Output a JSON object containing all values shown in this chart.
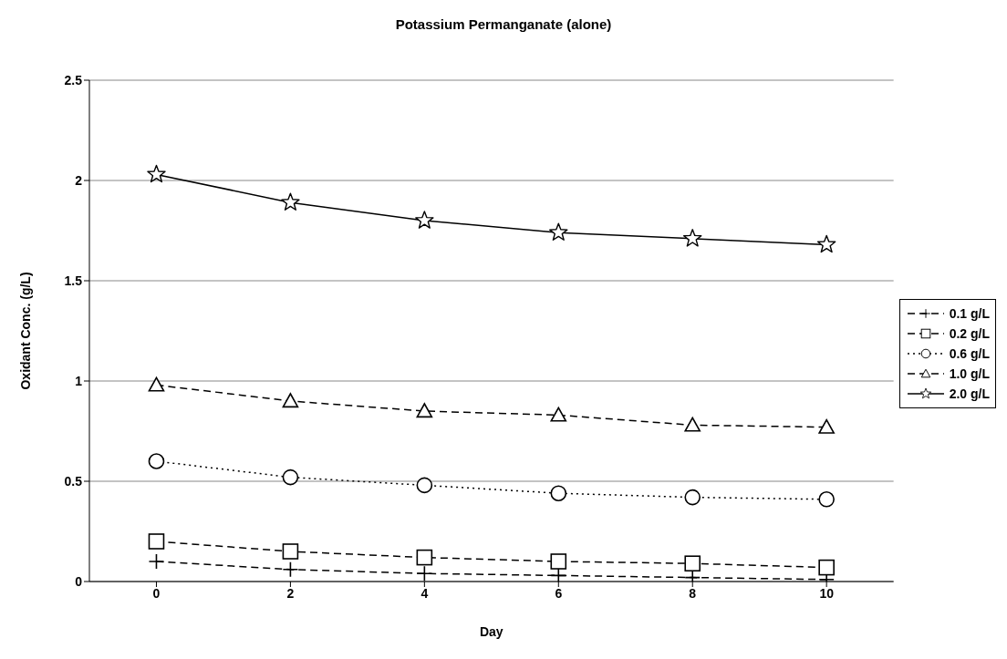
{
  "chart_data": {
    "type": "line",
    "title": "Potassium Permanganate (alone)",
    "xlabel": "Day",
    "ylabel": "Oxidant Conc. (g/L)",
    "x": [
      0,
      2,
      4,
      6,
      8,
      10
    ],
    "xlim": [
      -1,
      11
    ],
    "xticks": [
      0,
      2,
      4,
      6,
      8,
      10
    ],
    "ylim": [
      0,
      2.5
    ],
    "yticks": [
      0,
      0.5,
      1,
      1.5,
      2,
      2.5
    ],
    "grid": "y",
    "legend": "right",
    "series": [
      {
        "name": "0.1 g/L",
        "color": "#000000",
        "marker": "cross",
        "line_style": "dashed",
        "values": [
          0.1,
          0.06,
          0.04,
          0.03,
          0.02,
          0.01
        ]
      },
      {
        "name": "0.2 g/L",
        "color": "#000000",
        "marker": "square",
        "line_style": "dashed",
        "values": [
          0.2,
          0.15,
          0.12,
          0.1,
          0.09,
          0.07
        ]
      },
      {
        "name": "0.6 g/L",
        "color": "#000000",
        "marker": "circle",
        "line_style": "dotted",
        "values": [
          0.6,
          0.52,
          0.48,
          0.44,
          0.42,
          0.41
        ]
      },
      {
        "name": "1.0 g/L",
        "color": "#000000",
        "marker": "triangle",
        "line_style": "dashed",
        "values": [
          0.98,
          0.9,
          0.85,
          0.83,
          0.78,
          0.77
        ]
      },
      {
        "name": "2.0 g/L",
        "color": "#000000",
        "marker": "star",
        "line_style": "solid",
        "values": [
          2.03,
          1.89,
          1.8,
          1.74,
          1.71,
          1.68
        ]
      }
    ]
  }
}
